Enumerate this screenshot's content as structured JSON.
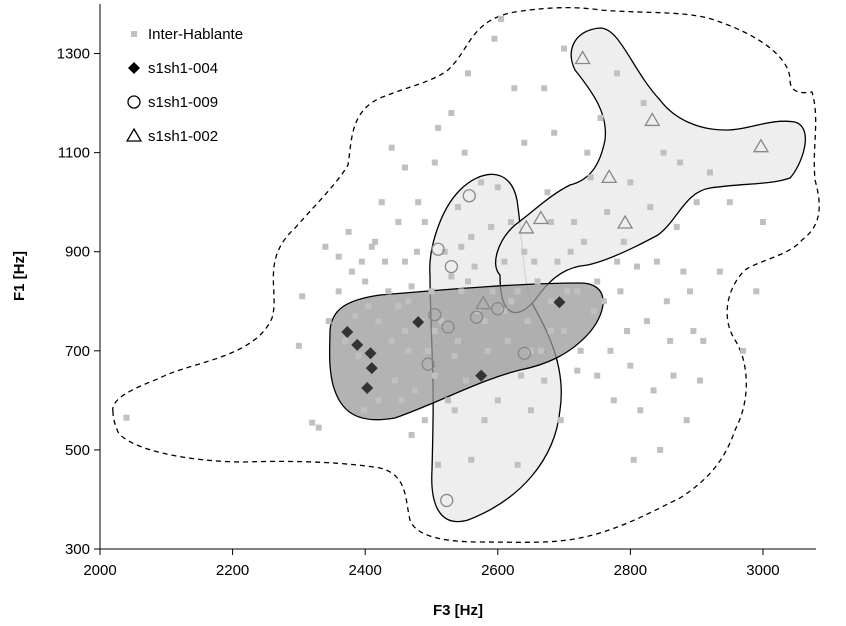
{
  "chart_data": {
    "type": "scatter",
    "title": "",
    "xlabel": "F3 [Hz]",
    "ylabel": "F1 [Hz]",
    "xlim": [
      2000,
      3080
    ],
    "ylim": [
      300,
      1400
    ],
    "xticks": [
      2000,
      2200,
      2400,
      2600,
      2800,
      3000
    ],
    "yticks": [
      300,
      500,
      700,
      900,
      1100,
      1300
    ],
    "grid": false,
    "legend_position": "top-left",
    "series": [
      {
        "name": "Inter-Hablante",
        "marker": "square",
        "color": "#c0c0c0",
        "points": [
          [
            2040,
            565
          ],
          [
            2300,
            710
          ],
          [
            2305,
            810
          ],
          [
            2320,
            555
          ],
          [
            2330,
            545
          ],
          [
            2340,
            910
          ],
          [
            2345,
            760
          ],
          [
            2360,
            820
          ],
          [
            2360,
            890
          ],
          [
            2370,
            720
          ],
          [
            2375,
            940
          ],
          [
            2380,
            860
          ],
          [
            2385,
            770
          ],
          [
            2390,
            690
          ],
          [
            2395,
            880
          ],
          [
            2398,
            580
          ],
          [
            2400,
            840
          ],
          [
            2405,
            790
          ],
          [
            2410,
            910
          ],
          [
            2415,
            920
          ],
          [
            2420,
            760
          ],
          [
            2420,
            600
          ],
          [
            2425,
            1000
          ],
          [
            2430,
            880
          ],
          [
            2435,
            820
          ],
          [
            2440,
            720
          ],
          [
            2440,
            1110
          ],
          [
            2445,
            640
          ],
          [
            2450,
            790
          ],
          [
            2450,
            960
          ],
          [
            2455,
            600
          ],
          [
            2460,
            880
          ],
          [
            2460,
            1070
          ],
          [
            2465,
            700
          ],
          [
            2470,
            830
          ],
          [
            2470,
            530
          ],
          [
            2475,
            620
          ],
          [
            2478,
            900
          ],
          [
            2480,
            1000
          ],
          [
            2485,
            760
          ],
          [
            2490,
            560
          ],
          [
            2495,
            700
          ],
          [
            2500,
            820
          ],
          [
            2505,
            650
          ],
          [
            2505,
            1080
          ],
          [
            2510,
            470
          ],
          [
            2510,
            1150
          ],
          [
            2515,
            760
          ],
          [
            2520,
            900
          ],
          [
            2525,
            600
          ],
          [
            2530,
            1180
          ],
          [
            2530,
            850
          ],
          [
            2535,
            580
          ],
          [
            2540,
            990
          ],
          [
            2540,
            720
          ],
          [
            2545,
            820
          ],
          [
            2550,
            1100
          ],
          [
            2552,
            640
          ],
          [
            2555,
            1260
          ],
          [
            2560,
            930
          ],
          [
            2560,
            480
          ],
          [
            2565,
            870
          ],
          [
            2570,
            780
          ],
          [
            2575,
            1040
          ],
          [
            2580,
            560
          ],
          [
            2585,
            700
          ],
          [
            2590,
            950
          ],
          [
            2592,
            820
          ],
          [
            2595,
            1330
          ],
          [
            2600,
            1030
          ],
          [
            2600,
            600
          ],
          [
            2605,
            1370
          ],
          [
            2610,
            780
          ],
          [
            2610,
            880
          ],
          [
            2615,
            720
          ],
          [
            2620,
            960
          ],
          [
            2625,
            1230
          ],
          [
            2630,
            820
          ],
          [
            2630,
            470
          ],
          [
            2635,
            650
          ],
          [
            2640,
            900
          ],
          [
            2640,
            1120
          ],
          [
            2645,
            760
          ],
          [
            2650,
            580
          ],
          [
            2655,
            880
          ],
          [
            2660,
            840
          ],
          [
            2665,
            700
          ],
          [
            2670,
            640
          ],
          [
            2670,
            1230
          ],
          [
            2675,
            1020
          ],
          [
            2680,
            800
          ],
          [
            2680,
            960
          ],
          [
            2685,
            1140
          ],
          [
            2690,
            880
          ],
          [
            2695,
            560
          ],
          [
            2700,
            740
          ],
          [
            2700,
            1310
          ],
          [
            2705,
            820
          ],
          [
            2710,
            900
          ],
          [
            2715,
            960
          ],
          [
            2720,
            660
          ],
          [
            2720,
            820
          ],
          [
            2725,
            700
          ],
          [
            2730,
            920
          ],
          [
            2735,
            1100
          ],
          [
            2740,
            1050
          ],
          [
            2745,
            780
          ],
          [
            2750,
            840
          ],
          [
            2750,
            650
          ],
          [
            2755,
            1170
          ],
          [
            2760,
            800
          ],
          [
            2765,
            980
          ],
          [
            2770,
            700
          ],
          [
            2775,
            600
          ],
          [
            2780,
            1260
          ],
          [
            2780,
            880
          ],
          [
            2785,
            820
          ],
          [
            2790,
            920
          ],
          [
            2795,
            740
          ],
          [
            2800,
            1040
          ],
          [
            2800,
            670
          ],
          [
            2805,
            480
          ],
          [
            2810,
            870
          ],
          [
            2815,
            580
          ],
          [
            2820,
            1200
          ],
          [
            2825,
            760
          ],
          [
            2830,
            990
          ],
          [
            2835,
            620
          ],
          [
            2840,
            880
          ],
          [
            2845,
            500
          ],
          [
            2850,
            1100
          ],
          [
            2855,
            800
          ],
          [
            2860,
            720
          ],
          [
            2865,
            650
          ],
          [
            2870,
            950
          ],
          [
            2875,
            1080
          ],
          [
            2880,
            860
          ],
          [
            2885,
            560
          ],
          [
            2890,
            820
          ],
          [
            2895,
            740
          ],
          [
            2900,
            1000
          ],
          [
            2905,
            640
          ],
          [
            2910,
            720
          ],
          [
            2920,
            1060
          ],
          [
            2935,
            860
          ],
          [
            2950,
            1000
          ],
          [
            2970,
            700
          ],
          [
            2990,
            820
          ],
          [
            3000,
            960
          ],
          [
            2460,
            740
          ],
          [
            2505,
            740
          ],
          [
            2535,
            690
          ],
          [
            2555,
            840
          ],
          [
            2580,
            760
          ],
          [
            2620,
            800
          ],
          [
            2650,
            700
          ],
          [
            2490,
            960
          ],
          [
            2465,
            800
          ],
          [
            2545,
            910
          ],
          [
            2680,
            740
          ]
        ]
      },
      {
        "name": "s1sh1-004",
        "marker": "diamond",
        "color": "#333333",
        "points": [
          [
            2373,
            738
          ],
          [
            2388,
            712
          ],
          [
            2408,
            695
          ],
          [
            2410,
            665
          ],
          [
            2403,
            625
          ],
          [
            2480,
            758
          ],
          [
            2575,
            650
          ],
          [
            2693,
            798
          ]
        ]
      },
      {
        "name": "s1sh1-009",
        "marker": "circle",
        "color": "#888888",
        "points": [
          [
            2557,
            1013
          ],
          [
            2510,
            905
          ],
          [
            2530,
            870
          ],
          [
            2505,
            773
          ],
          [
            2525,
            748
          ],
          [
            2495,
            673
          ],
          [
            2568,
            768
          ],
          [
            2600,
            785
          ],
          [
            2640,
            695
          ],
          [
            2523,
            398
          ]
        ]
      },
      {
        "name": "s1sh1-002",
        "marker": "triangle",
        "color": "#888888",
        "points": [
          [
            2728,
            1290
          ],
          [
            2833,
            1165
          ],
          [
            2997,
            1112
          ],
          [
            2768,
            1050
          ],
          [
            2665,
            967
          ],
          [
            2643,
            948
          ],
          [
            2792,
            958
          ],
          [
            2578,
            795
          ]
        ]
      }
    ],
    "regions": [
      {
        "label": "inter-speaker dashed boundary",
        "style": "dashed",
        "fill": "none"
      },
      {
        "label": "s1sh1-004 region",
        "style": "solid",
        "fill": "#9a9a9a"
      },
      {
        "label": "s1sh1-009 region",
        "style": "solid",
        "fill": "#ececec"
      },
      {
        "label": "s1sh1-002 region",
        "style": "solid",
        "fill": "#ececec"
      }
    ]
  }
}
